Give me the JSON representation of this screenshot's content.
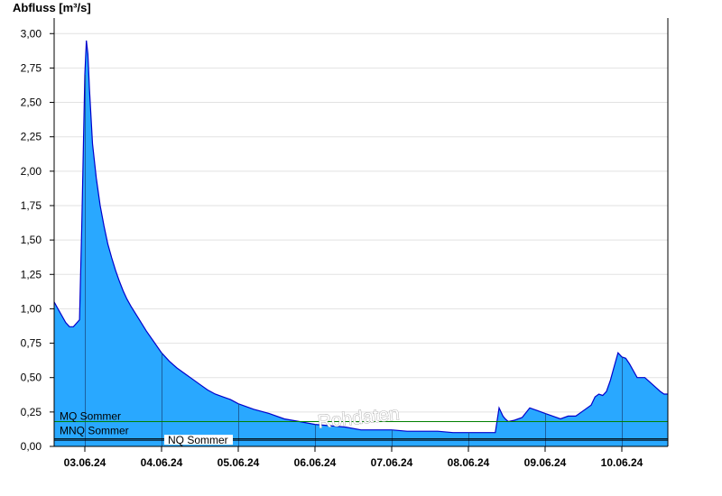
{
  "chart_data": {
    "type": "area",
    "ylabel": "Abfluss [m³/s]",
    "ylim": [
      0,
      3.1
    ],
    "yticks": [
      "0,00",
      "0,25",
      "0,50",
      "0,75",
      "1,00",
      "1,25",
      "1,50",
      "1,75",
      "2,00",
      "2,25",
      "2,50",
      "2,75",
      "3,00"
    ],
    "ytick_values": [
      0,
      0.25,
      0.5,
      0.75,
      1.0,
      1.25,
      1.5,
      1.75,
      2.0,
      2.25,
      2.5,
      2.75,
      3.0
    ],
    "xrange_days": [
      2.6,
      10.6
    ],
    "xticks": [
      "03.06.24",
      "04.06.24",
      "05.06.24",
      "06.06.24",
      "07.06.24",
      "08.06.24",
      "09.06.24",
      "10.06.24"
    ],
    "grid": true,
    "colors": {
      "fill": "#29a8ff",
      "line": "#0000cc",
      "mq": "#008000",
      "ref": "#000000"
    },
    "reference_lines": [
      {
        "label": "MQ Sommer",
        "value": 0.18
      },
      {
        "label": "MNQ Sommer",
        "value": 0.055
      },
      {
        "label": "NQ Sommer",
        "value": 0.045
      }
    ],
    "watermark": "Rohdaten",
    "series": [
      {
        "x": [
          2.6,
          2.65,
          2.7,
          2.75,
          2.8,
          2.85,
          2.93,
          2.96,
          3.0,
          3.02,
          3.04,
          3.06,
          3.1,
          3.15,
          3.2,
          3.25,
          3.3,
          3.35,
          3.4,
          3.45,
          3.5,
          3.55,
          3.6,
          3.7,
          3.8,
          3.9,
          4.0,
          4.1,
          4.2,
          4.3,
          4.4,
          4.5,
          4.6,
          4.7,
          4.8,
          4.9,
          5.0,
          5.2,
          5.4,
          5.6,
          5.8,
          6.0,
          6.2,
          6.4,
          6.6,
          6.8,
          7.0,
          7.2,
          7.4,
          7.6,
          7.8,
          8.0,
          8.2,
          8.35,
          8.4,
          8.45,
          8.48,
          8.52,
          8.6,
          8.7,
          8.8,
          8.9,
          9.0,
          9.1,
          9.2,
          9.3,
          9.4,
          9.5,
          9.6,
          9.65,
          9.7,
          9.75,
          9.8,
          9.85,
          9.9,
          9.95,
          10.0,
          10.05,
          10.1,
          10.2,
          10.3,
          10.4,
          10.5,
          10.55,
          10.6
        ],
        "y": [
          1.05,
          1.0,
          0.95,
          0.9,
          0.87,
          0.87,
          0.92,
          1.6,
          2.7,
          2.95,
          2.85,
          2.6,
          2.2,
          1.95,
          1.75,
          1.6,
          1.47,
          1.37,
          1.28,
          1.2,
          1.13,
          1.07,
          1.02,
          0.93,
          0.84,
          0.76,
          0.68,
          0.62,
          0.57,
          0.53,
          0.49,
          0.45,
          0.41,
          0.38,
          0.36,
          0.34,
          0.31,
          0.27,
          0.24,
          0.2,
          0.18,
          0.16,
          0.15,
          0.14,
          0.12,
          0.12,
          0.12,
          0.11,
          0.11,
          0.11,
          0.1,
          0.1,
          0.1,
          0.1,
          0.28,
          0.22,
          0.2,
          0.18,
          0.19,
          0.21,
          0.28,
          0.26,
          0.24,
          0.22,
          0.2,
          0.22,
          0.22,
          0.26,
          0.3,
          0.36,
          0.38,
          0.37,
          0.4,
          0.48,
          0.58,
          0.68,
          0.65,
          0.64,
          0.6,
          0.5,
          0.5,
          0.45,
          0.4,
          0.38,
          0.38
        ]
      }
    ]
  }
}
